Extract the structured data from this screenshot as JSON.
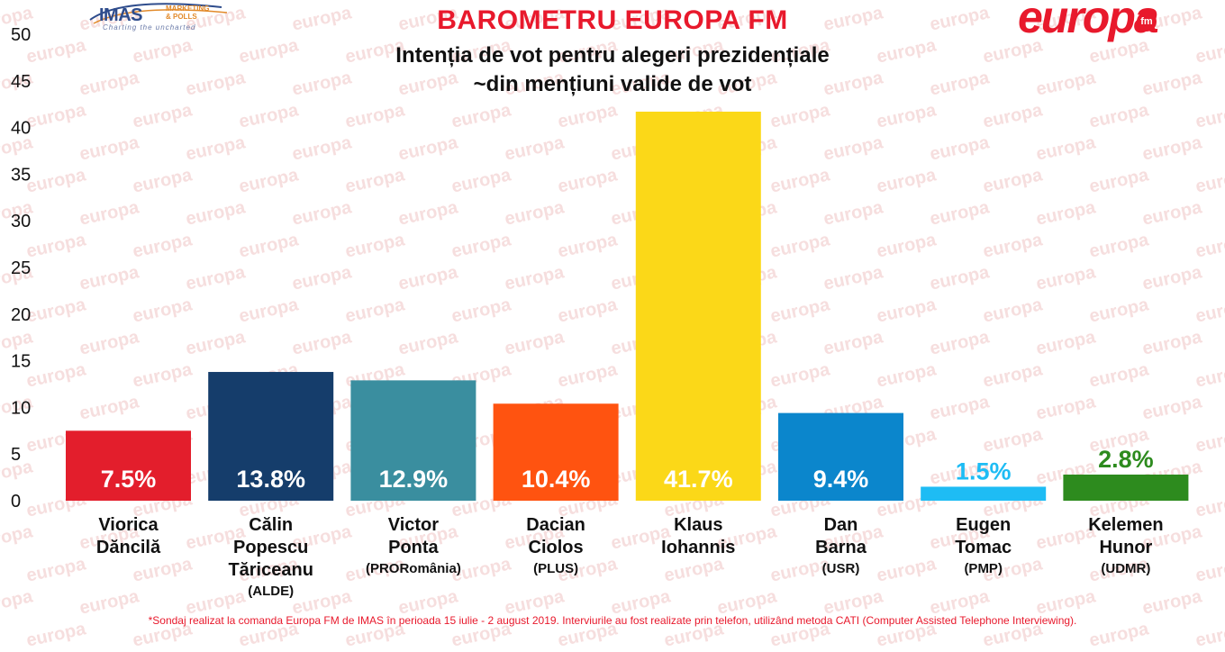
{
  "header": {
    "title": "BAROMETRU EUROPA FM",
    "subtitle_line1": "Intenția de vot pentru alegeri prezidențiale",
    "subtitle_line2": "~din mențiuni valide de vot"
  },
  "logos": {
    "imas_word": "IMAS",
    "imas_sub": "MARKETING\n& POLLS",
    "imas_tagline": "Charting the uncharted",
    "europa_word": "europa",
    "europa_fm": "fm",
    "watermark_word": "europa"
  },
  "chart_data": {
    "type": "bar",
    "ylim": [
      0,
      50
    ],
    "yticks": [
      0,
      5,
      10,
      15,
      20,
      25,
      30,
      35,
      40,
      45,
      50
    ],
    "grid": false,
    "categories": [
      {
        "name_lines": [
          "Viorica",
          "Dăncilă"
        ],
        "party": "",
        "value": 7.5,
        "label": "7.5%",
        "color": "#e31e2c",
        "label_color": "#ffffff",
        "label_inside": true
      },
      {
        "name_lines": [
          "Călin",
          "Popescu",
          "Tăriceanu"
        ],
        "party": "(ALDE)",
        "value": 13.8,
        "label": "13.8%",
        "color": "#153d6b",
        "label_color": "#ffffff",
        "label_inside": true
      },
      {
        "name_lines": [
          "Victor",
          "Ponta"
        ],
        "party": "(PRORomânia)",
        "value": 12.9,
        "label": "12.9%",
        "color": "#3a8e9f",
        "label_color": "#ffffff",
        "label_inside": true
      },
      {
        "name_lines": [
          "Dacian",
          "Ciolos"
        ],
        "party": "(PLUS)",
        "value": 10.4,
        "label": "10.4%",
        "color": "#ff5310",
        "label_color": "#ffffff",
        "label_inside": true
      },
      {
        "name_lines": [
          "Klaus",
          "Iohannis"
        ],
        "party": "",
        "value": 41.7,
        "label": "41.7%",
        "color": "#fbd818",
        "label_color": "#ffffff",
        "label_inside": true
      },
      {
        "name_lines": [
          "Dan",
          "Barna"
        ],
        "party": "(USR)",
        "value": 9.4,
        "label": "9.4%",
        "color": "#0b86cc",
        "label_color": "#ffffff",
        "label_inside": true
      },
      {
        "name_lines": [
          "Eugen",
          "Tomac"
        ],
        "party": "(PMP)",
        "value": 1.5,
        "label": "1.5%",
        "color": "#1ebcf4",
        "label_color": "#1ebcf4",
        "label_inside": false
      },
      {
        "name_lines": [
          "Kelemen",
          "Hunor"
        ],
        "party": "(UDMR)",
        "value": 2.8,
        "label": "2.8%",
        "color": "#2d8b1e",
        "label_color": "#2d8b1e",
        "label_inside": false
      }
    ]
  },
  "footnote": "*Sondaj realizat la comanda Europa FM de IMAS în perioada 15 iulie - 2 august 2019. Interviurile au fost realizate prin telefon, utilizând metoda CATI (Computer Assisted Telephone Interviewing)."
}
